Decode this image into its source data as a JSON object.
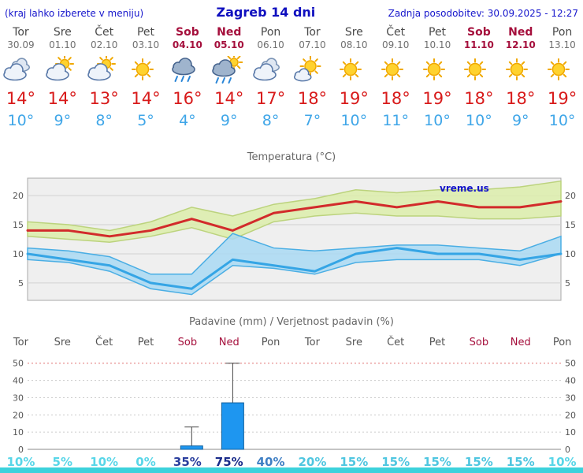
{
  "header": {
    "left_note": "(kraj lahko izberete v meniju)",
    "title": "Zagreb 14 dni",
    "last_update": "Zadnja posodobitev: 30.09.2025 - 12:27"
  },
  "colors": {
    "header_blue": "#1616cc",
    "weekend_red": "#a50f3c",
    "tmax_red": "#d81a1a",
    "tmin_blue": "#3fa6e8",
    "bottom_strip": "#3cd2dc"
  },
  "days": [
    {
      "day": "Tor",
      "date": "30.09",
      "icon": "cloudy",
      "tmax": "14°",
      "tmin": "10°",
      "weekend": false
    },
    {
      "day": "Sre",
      "date": "01.10",
      "icon": "partly-cloudy",
      "tmax": "14°",
      "tmin": "9°",
      "weekend": false
    },
    {
      "day": "Čet",
      "date": "02.10",
      "icon": "partly-cloudy",
      "tmax": "13°",
      "tmin": "8°",
      "weekend": false
    },
    {
      "day": "Pet",
      "date": "03.10",
      "icon": "sunny",
      "tmax": "14°",
      "tmin": "5°",
      "weekend": false
    },
    {
      "day": "Sob",
      "date": "04.10",
      "icon": "rain",
      "tmax": "16°",
      "tmin": "4°",
      "weekend": true
    },
    {
      "day": "Ned",
      "date": "05.10",
      "icon": "rain-showers",
      "tmax": "14°",
      "tmin": "9°",
      "weekend": true
    },
    {
      "day": "Pon",
      "date": "06.10",
      "icon": "cloudy",
      "tmax": "17°",
      "tmin": "8°",
      "weekend": false
    },
    {
      "day": "Tor",
      "date": "07.10",
      "icon": "mostly-sunny",
      "tmax": "18°",
      "tmin": "7°",
      "weekend": false
    },
    {
      "day": "Sre",
      "date": "08.10",
      "icon": "sunny",
      "tmax": "19°",
      "tmin": "10°",
      "weekend": false
    },
    {
      "day": "Čet",
      "date": "09.10",
      "icon": "sunny",
      "tmax": "18°",
      "tmin": "11°",
      "weekend": false
    },
    {
      "day": "Pet",
      "date": "10.10",
      "icon": "sunny",
      "tmax": "19°",
      "tmin": "10°",
      "weekend": false
    },
    {
      "day": "Sob",
      "date": "11.10",
      "icon": "sunny",
      "tmax": "18°",
      "tmin": "10°",
      "weekend": true
    },
    {
      "day": "Ned",
      "date": "12.10",
      "icon": "sunny",
      "tmax": "18°",
      "tmin": "9°",
      "weekend": true
    },
    {
      "day": "Pon",
      "date": "13.10",
      "icon": "sunny",
      "tmax": "19°",
      "tmin": "10°",
      "weekend": false
    }
  ],
  "chart_data": [
    {
      "type": "line",
      "title": "Temperatura (°C)",
      "watermark": "vreme.us",
      "categories": [
        "Tor",
        "Sre",
        "Čet",
        "Pet",
        "Sob",
        "Ned",
        "Pon",
        "Tor",
        "Sre",
        "Čet",
        "Pet",
        "Sob",
        "Ned",
        "Pon"
      ],
      "series": [
        {
          "name": "max-temperature",
          "color": "#d22b2b",
          "values": [
            14,
            14,
            13,
            14,
            16,
            14,
            17,
            18,
            19,
            18,
            19,
            18,
            18,
            19
          ]
        },
        {
          "name": "min-temperature",
          "color": "#35a5e5",
          "values": [
            10,
            9,
            8,
            5,
            4,
            9,
            8,
            7,
            10,
            11,
            10,
            10,
            9,
            10
          ]
        }
      ],
      "bands": [
        {
          "name": "max-range",
          "color": "#dcedaa",
          "edge": "#bcd37d",
          "upper": [
            15.5,
            15,
            14,
            15.5,
            18,
            16.5,
            18.5,
            19.5,
            21,
            20.5,
            21,
            21,
            21.5,
            22.5
          ],
          "lower": [
            13,
            12.5,
            12,
            13,
            14.5,
            12.5,
            15.5,
            16.5,
            17,
            16.5,
            16.5,
            16,
            16,
            16.5
          ]
        },
        {
          "name": "min-range",
          "color": "#a9d9f3",
          "edge": "#4aaee4",
          "upper": [
            11,
            10.5,
            9.5,
            6.5,
            6.5,
            13.5,
            11,
            10.5,
            11,
            11.5,
            11.5,
            11,
            10.5,
            13
          ],
          "lower": [
            9,
            8.5,
            7,
            4,
            3,
            8,
            7.5,
            6.5,
            8.5,
            9,
            9,
            9,
            8,
            10
          ]
        }
      ],
      "ylim": [
        2,
        23
      ],
      "yticks": [
        5,
        10,
        15,
        20
      ],
      "grid": true,
      "legend": "none"
    },
    {
      "type": "bar",
      "title": "Padavine (mm) / Verjetnost padavin (%)",
      "categories": [
        "Tor",
        "Sre",
        "Čet",
        "Pet",
        "Sob",
        "Ned",
        "Pon",
        "Tor",
        "Sre",
        "Čet",
        "Pet",
        "Sob",
        "Ned",
        "Pon"
      ],
      "values": [
        0,
        0,
        0,
        0,
        2,
        27,
        0,
        0,
        0,
        0,
        0,
        0,
        0,
        0
      ],
      "whisker_max": [
        0,
        0,
        0,
        0,
        13,
        50,
        0,
        0,
        0,
        0,
        0,
        0,
        0,
        0
      ],
      "ylim": [
        0,
        54
      ],
      "yticks": [
        0,
        10,
        20,
        30,
        40,
        50
      ],
      "bar_color": "#1e96f0",
      "bar_border": "#10629f",
      "top_gridline_color": "#e07070",
      "probabilities": [
        {
          "label": "10%",
          "color": "#58d6e8"
        },
        {
          "label": "5%",
          "color": "#58d6e8"
        },
        {
          "label": "10%",
          "color": "#58d6e8"
        },
        {
          "label": "0%",
          "color": "#58d6e8"
        },
        {
          "label": "35%",
          "color": "#2b3f9e"
        },
        {
          "label": "75%",
          "color": "#1a2c8a"
        },
        {
          "label": "40%",
          "color": "#3f7fc4"
        },
        {
          "label": "20%",
          "color": "#4fc6e0"
        },
        {
          "label": "15%",
          "color": "#4fc6e0"
        },
        {
          "label": "15%",
          "color": "#4fc6e0"
        },
        {
          "label": "15%",
          "color": "#4fc6e0"
        },
        {
          "label": "15%",
          "color": "#4fc6e0"
        },
        {
          "label": "15%",
          "color": "#4fc6e0"
        },
        {
          "label": "10%",
          "color": "#58d6e8"
        }
      ]
    }
  ]
}
